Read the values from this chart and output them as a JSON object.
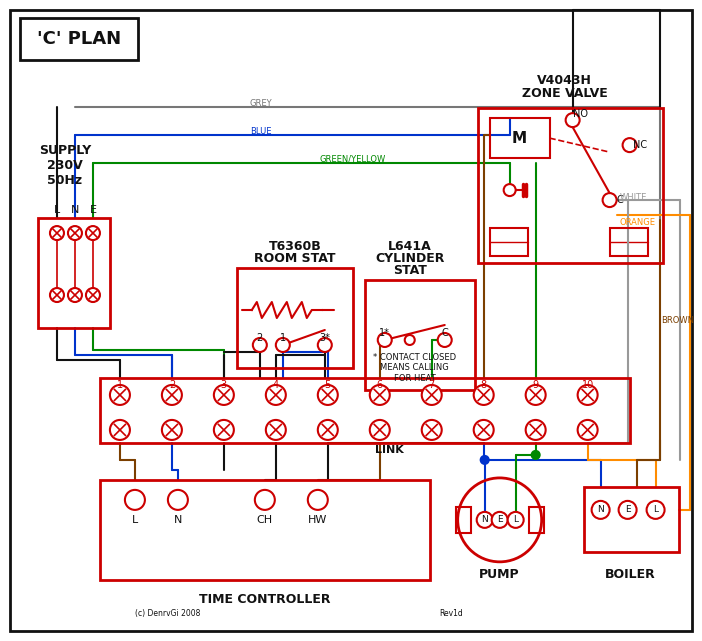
{
  "title": "'C' PLAN",
  "bg_color": "#ffffff",
  "red": "#cc0000",
  "blue": "#0033cc",
  "green": "#008800",
  "grey": "#777777",
  "brown": "#7B3F00",
  "orange": "#FF8C00",
  "black": "#111111",
  "white_wire": "#999999",
  "zone_valve_label1": "V4043H",
  "zone_valve_label2": "ZONE VALVE",
  "room_stat_label1": "T6360B",
  "room_stat_label2": "ROOM STAT",
  "cylinder_stat_label1": "L641A",
  "cylinder_stat_label2": "CYLINDER",
  "cylinder_stat_label3": "STAT",
  "supply_label": "SUPPLY\n230V\n50Hz",
  "time_controller_label": "TIME CONTROLLER",
  "pump_label": "PUMP",
  "boiler_label": "BOILER",
  "link_label": "LINK",
  "copyright": "(c) DenrvGi 2008",
  "rev": "Rev1d"
}
